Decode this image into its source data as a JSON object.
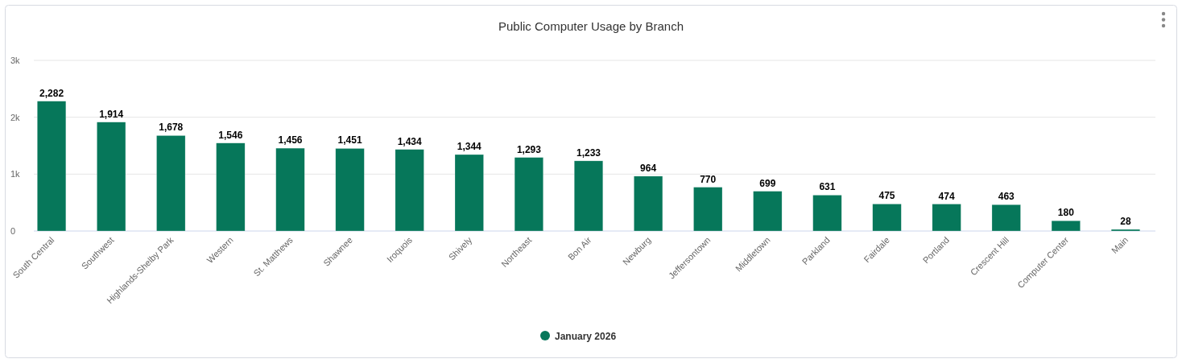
{
  "chart_data": {
    "type": "bar",
    "title": "Public Computer Usage by Branch",
    "categories": [
      "South Central",
      "Southwest",
      "Highlands-Shelby Park",
      "Western",
      "St. Matthews",
      "Shawnee",
      "Iroquois",
      "Shively",
      "Northeast",
      "Bon Air",
      "Newburg",
      "Jeffersontown",
      "Middletown",
      "Parkland",
      "Fairdale",
      "Portland",
      "Crescent Hill",
      "Computer Center",
      "Main"
    ],
    "series": [
      {
        "name": "January 2026",
        "color": "#06775a",
        "values": [
          2282,
          1914,
          1678,
          1546,
          1456,
          1451,
          1434,
          1344,
          1293,
          1233,
          964,
          770,
          699,
          631,
          475,
          474,
          463,
          180,
          28
        ],
        "value_labels": [
          "2,282",
          "1,914",
          "1,678",
          "1,546",
          "1,456",
          "1,451",
          "1,434",
          "1,344",
          "1,293",
          "1,233",
          "964",
          "770",
          "699",
          "631",
          "475",
          "474",
          "463",
          "180",
          "28"
        ]
      }
    ],
    "ylim": [
      0,
      3000
    ],
    "yticks": [
      {
        "value": 0,
        "label": "0"
      },
      {
        "value": 1000,
        "label": "1k"
      },
      {
        "value": 2000,
        "label": "2k"
      },
      {
        "value": 3000,
        "label": "3k"
      }
    ],
    "grid": "y",
    "legend": "bottom"
  }
}
